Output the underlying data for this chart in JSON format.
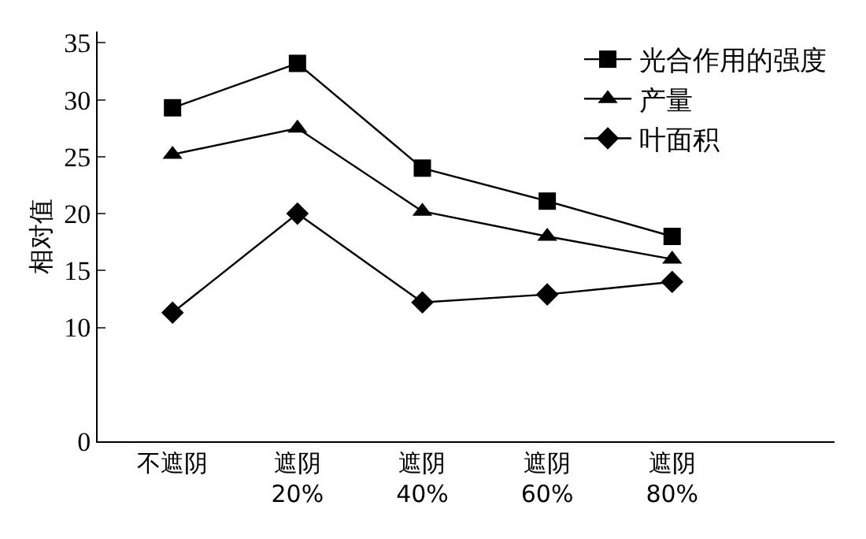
{
  "chart_data": {
    "type": "line",
    "ylabel": "相对值",
    "categories": [
      "不遮阴",
      "遮阴\n20%",
      "遮阴\n40%",
      "遮阴\n60%",
      "遮阴\n80%"
    ],
    "series": [
      {
        "name": "光合作用的强度",
        "color": "#000000",
        "marker": "square",
        "values": [
          29.3,
          33.2,
          24.0,
          21.1,
          18.0
        ]
      },
      {
        "name": "产量",
        "color": "#000000",
        "marker": "triangle",
        "values": [
          25.2,
          27.5,
          20.2,
          18.0,
          16.0
        ]
      },
      {
        "name": "叶面积",
        "color": "#000000",
        "marker": "diamond",
        "values": [
          11.3,
          20.0,
          12.2,
          12.9,
          14.0
        ]
      }
    ],
    "ylim": [
      0,
      36
    ],
    "yticks": [
      0,
      10,
      15,
      20,
      25,
      30,
      35
    ],
    "grid": false,
    "legend": "top right",
    "line_style": "solid"
  }
}
